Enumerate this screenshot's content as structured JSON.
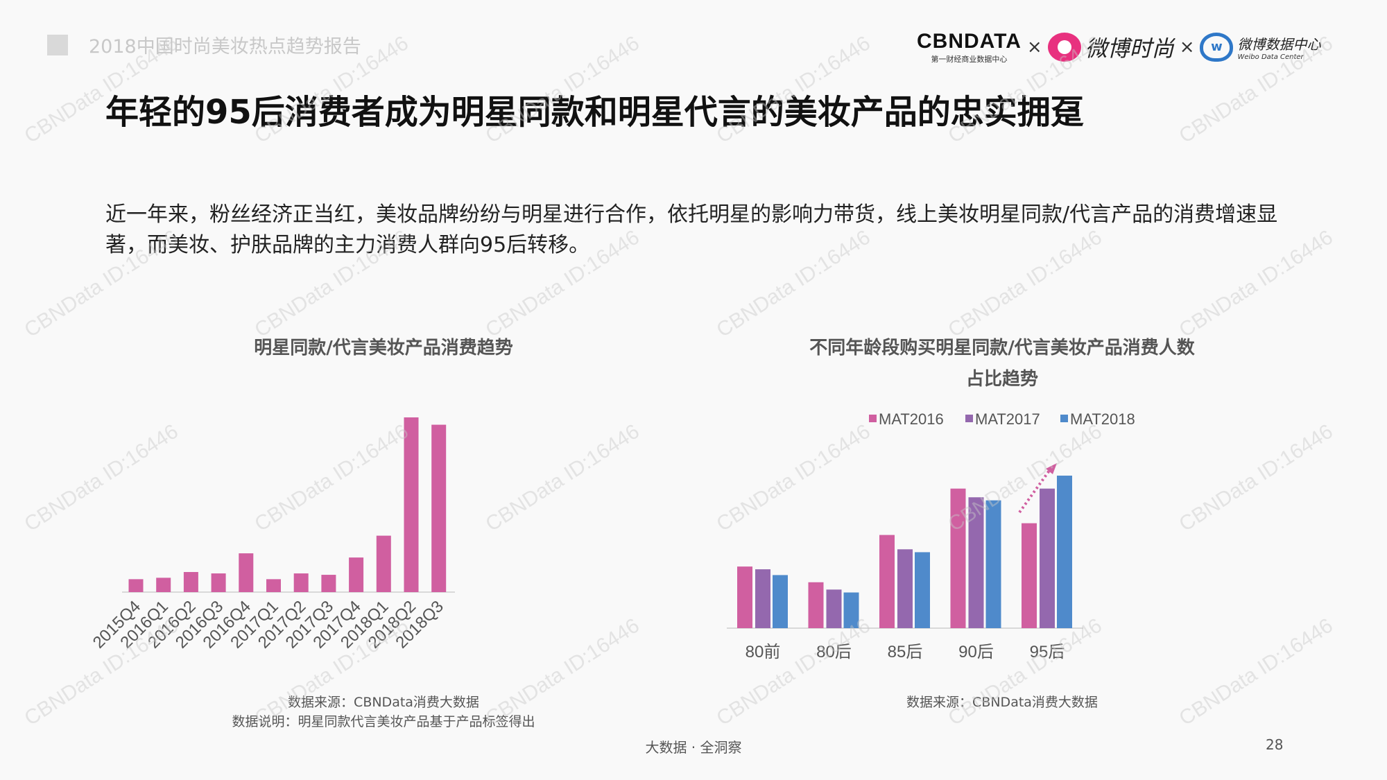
{
  "header": {
    "report_title": "2018中国时尚美妆热点趋势报告"
  },
  "logos": {
    "cbndata": "CBNDATA",
    "cbndata_sub": "第一财经商业数据中心",
    "times1": "×",
    "weibo_fashion": "微博时尚",
    "times2": "×",
    "weibo_data": "微博数据中心",
    "weibo_data_en": "Weibo Data Center"
  },
  "title": "年轻的95后消费者成为明星同款和明星代言的美妆产品的忠实拥趸",
  "paragraph": "近一年来，粉丝经济正当红，美妆品牌纷纷与明星进行合作，依托明星的影响力带货，线上美妆明星同款/代言产品的消费增速显著，而美妆、护肤品牌的主力消费人群向95后转移。",
  "watermark": "CBNData ID:16446",
  "colors": {
    "pink": "#D05FA0",
    "purple": "#9468AE",
    "blue": "#4F8ACB"
  },
  "chart_data": [
    {
      "type": "bar",
      "title": "明星同款/代言美妆产品消费趋势",
      "categories": [
        "2015Q4",
        "2016Q1",
        "2016Q2",
        "2016Q3",
        "2016Q4",
        "2017Q1",
        "2017Q2",
        "2017Q3",
        "2017Q4",
        "2018Q1",
        "2018Q2",
        "2018Q3"
      ],
      "values": [
        7.4,
        8.2,
        11.5,
        10.7,
        22.2,
        7.4,
        10.7,
        9.9,
        19.8,
        32.3,
        100,
        95.8
      ],
      "ylim": [
        0,
        100
      ],
      "grid": false,
      "color": "#D05FA0",
      "source": "数据来源：CBNData消费大数据",
      "note": "数据说明：明星同款代言美妆产品基于产品标签得出"
    },
    {
      "type": "bar",
      "title_line1": "不同年龄段购买明星同款/代言美妆产品消费人数",
      "title_line2": "占比趋势",
      "categories": [
        "80前",
        "80后",
        "85后",
        "90后",
        "95后"
      ],
      "series": [
        {
          "name": "MAT2016",
          "color": "#D05FA0",
          "values": [
            40.4,
            30.1,
            61.1,
            91.5,
            68.8
          ]
        },
        {
          "name": "MAT2017",
          "color": "#9468AE",
          "values": [
            38.6,
            25.3,
            51.7,
            85.8,
            91.5
          ]
        },
        {
          "name": "MAT2018",
          "color": "#4F8ACB",
          "values": [
            34.8,
            23.4,
            49.8,
            83.8,
            100
          ]
        }
      ],
      "ylim": [
        0,
        100
      ],
      "grid": false,
      "legend": "top",
      "annotation": "dotted-up-arrow over 95后",
      "source": "数据来源：CBNData消费大数据"
    }
  ],
  "footer": {
    "slogan": "大数据 · 全洞察",
    "page": "28"
  }
}
